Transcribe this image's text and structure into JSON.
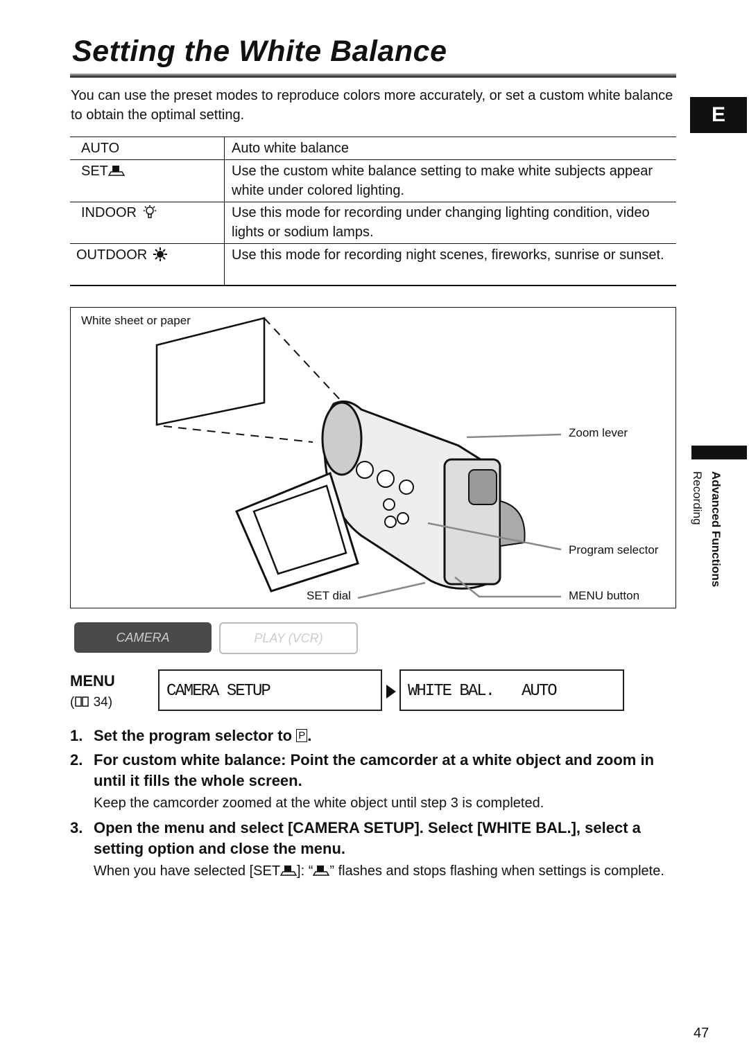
{
  "title": "Setting the White Balance",
  "intro": "You can use the preset modes to reproduce colors more accurately, or set a custom white balance to obtain the optimal setting.",
  "table": {
    "rows": [
      [
        "AUTO",
        "Auto white balance"
      ],
      [
        "SET",
        "Use the custom white balance setting to make white subjects appear white under colored lighting."
      ],
      [
        "INDOOR",
        "Use this mode for recording under changing lighting condition, video lights or sodium lamps."
      ],
      [
        "OUTDOOR",
        "Use this mode for recording night scenes, fireworks, sunrise or sunset."
      ]
    ]
  },
  "figure": {
    "labels": [
      "White sheet or paper",
      "Zoom lever",
      "Program selector",
      "SET dial",
      "MENU button"
    ]
  },
  "modes": [
    "CAMERA",
    "PLAY (VCR)"
  ],
  "menu": {
    "label": "MENU",
    "ref_open": "(",
    "ref_page": "34)",
    "box1": "CAMERA SETUP",
    "box2": "WHITE BAL.",
    "box2_value": "AUTO"
  },
  "steps": [
    {
      "number": "1.",
      "text": "Set the program selector to",
      "symbol": "P",
      "end": "."
    },
    {
      "number": "2.",
      "text": "For custom white balance: Point the camcorder at a white object and zoom in until it fills the whole screen.",
      "note": "Keep the camcorder zoomed at the white object until step 3 is completed."
    },
    {
      "number": "3.",
      "text": "Open the menu and select [CAMERA SETUP]. Select [WHITE BAL.], select a setting option and close the menu.",
      "note_parts": [
        "When you have selected [SET",
        "]: “",
        "” flashes and stops flashing when settings is complete."
      ]
    }
  ],
  "side": {
    "tab": "E",
    "section": "Advanced Functions",
    "subsection": "Recording"
  },
  "page_number": "47"
}
